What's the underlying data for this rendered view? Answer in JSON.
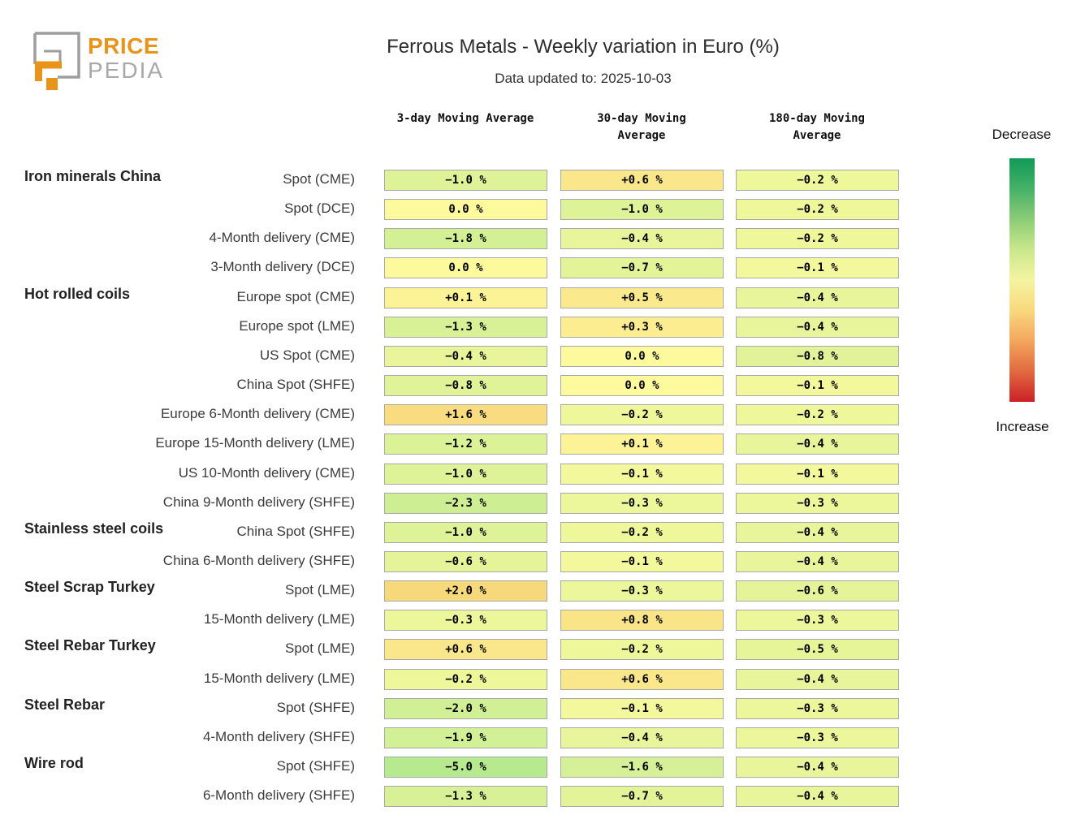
{
  "header": {
    "logo_price": "PRICE",
    "logo_pedia": "PEDIA",
    "logo_orange": "#e8941a",
    "logo_gray": "#9e9e9e"
  },
  "chart_data": {
    "type": "heatmap",
    "title": "Ferrous Metals - Weekly variation in Euro (%)",
    "subtitle": "Data updated to: 2025-10-03",
    "unit": "%",
    "value_format": "signed percent, 1 decimal",
    "columns": [
      "3-day Moving Average",
      "30-day Moving Average",
      "180-day Moving Average"
    ],
    "rows": [
      {
        "group": "Iron minerals China",
        "label": "Spot (CME)",
        "values": [
          -1.0,
          0.6,
          -0.2
        ]
      },
      {
        "group": "",
        "label": "Spot (DCE)",
        "values": [
          0.0,
          -1.0,
          -0.2
        ]
      },
      {
        "group": "",
        "label": "4-Month delivery (CME)",
        "values": [
          -1.8,
          -0.4,
          -0.2
        ]
      },
      {
        "group": "",
        "label": "3-Month delivery (DCE)",
        "values": [
          0.0,
          -0.7,
          -0.1
        ]
      },
      {
        "group": "Hot rolled coils",
        "label": "Europe spot (CME)",
        "values": [
          0.1,
          0.5,
          -0.4
        ]
      },
      {
        "group": "",
        "label": "Europe spot (LME)",
        "values": [
          -1.3,
          0.3,
          -0.4
        ]
      },
      {
        "group": "",
        "label": "US Spot (CME)",
        "values": [
          -0.4,
          0.0,
          -0.8
        ]
      },
      {
        "group": "",
        "label": "China Spot (SHFE)",
        "values": [
          -0.8,
          0.0,
          -0.1
        ]
      },
      {
        "group": "",
        "label": "Europe 6-Month delivery (CME)",
        "values": [
          1.6,
          -0.2,
          -0.2
        ]
      },
      {
        "group": "",
        "label": "Europe 15-Month delivery (LME)",
        "values": [
          -1.2,
          0.1,
          -0.4
        ]
      },
      {
        "group": "",
        "label": "US 10-Month delivery (CME)",
        "values": [
          -1.0,
          -0.1,
          -0.1
        ]
      },
      {
        "group": "",
        "label": "China 9-Month delivery (SHFE)",
        "values": [
          -2.3,
          -0.3,
          -0.3
        ]
      },
      {
        "group": "Stainless steel coils",
        "label": "China Spot (SHFE)",
        "values": [
          -1.0,
          -0.2,
          -0.4
        ]
      },
      {
        "group": "",
        "label": "China 6-Month delivery (SHFE)",
        "values": [
          -0.6,
          -0.1,
          -0.4
        ]
      },
      {
        "group": "Steel Scrap Turkey",
        "label": "Spot (LME)",
        "values": [
          2.0,
          -0.3,
          -0.6
        ]
      },
      {
        "group": "",
        "label": "15-Month delivery (LME)",
        "values": [
          -0.3,
          0.8,
          -0.3
        ]
      },
      {
        "group": "Steel Rebar Turkey",
        "label": "Spot (LME)",
        "values": [
          0.6,
          -0.2,
          -0.5
        ]
      },
      {
        "group": "",
        "label": "15-Month delivery (LME)",
        "values": [
          -0.2,
          0.6,
          -0.4
        ]
      },
      {
        "group": "Steel Rebar",
        "label": "Spot (SHFE)",
        "values": [
          -2.0,
          -0.1,
          -0.3
        ]
      },
      {
        "group": "",
        "label": "4-Month delivery (SHFE)",
        "values": [
          -1.9,
          -0.4,
          -0.3
        ]
      },
      {
        "group": "Wire rod",
        "label": "Spot (SHFE)",
        "values": [
          -5.0,
          -1.6,
          -0.4
        ]
      },
      {
        "group": "",
        "label": "6-Month delivery (SHFE)",
        "values": [
          -1.3,
          -0.7,
          -0.4
        ]
      }
    ],
    "color_scale": {
      "zero": "#fdfa9e",
      "min_anchor": {
        "value": -5.0,
        "color": "#b7e98f"
      },
      "max_anchor": {
        "value": 2.0,
        "color": "#f7d87b"
      },
      "cell_border": "#a8a8a8"
    },
    "legend": {
      "top_label": "Decrease",
      "bottom_label": "Increase",
      "gradient": [
        "#119a57",
        "#45b167",
        "#8ccc77",
        "#c9e78c",
        "#f5f4a1",
        "#f9d87e",
        "#f3a65c",
        "#e06a40",
        "#cb2027"
      ]
    }
  }
}
